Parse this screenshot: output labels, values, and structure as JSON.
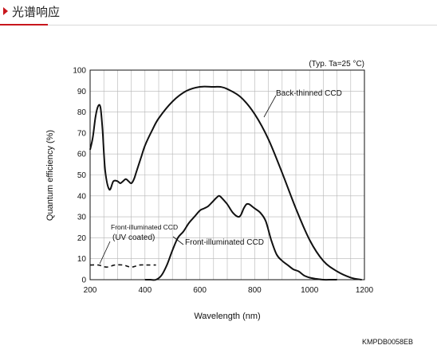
{
  "header": {
    "title": "光谱响应"
  },
  "chart_data": {
    "type": "line",
    "title": "",
    "note": "(Typ. Ta=25 °C)",
    "xlabel": "Wavelength (nm)",
    "ylabel": "Quantum efficiency (%)",
    "xlim": [
      200,
      1200
    ],
    "ylim": [
      0,
      100
    ],
    "xticks": [
      200,
      400,
      600,
      800,
      1000,
      1200
    ],
    "yticks": [
      0,
      10,
      20,
      30,
      40,
      50,
      60,
      70,
      80,
      90,
      100
    ],
    "grid": true,
    "footer_code": "KMPDB0058EB",
    "series": [
      {
        "name": "Back-thinned CCD",
        "style": "solid",
        "x": [
          200,
          210,
          220,
          230,
          238,
          245,
          255,
          270,
          285,
          300,
          310,
          320,
          330,
          340,
          350,
          360,
          370,
          385,
          400,
          425,
          450,
          500,
          550,
          600,
          650,
          675,
          700,
          750,
          800,
          850,
          900,
          950,
          1000,
          1050,
          1100,
          1150,
          1190
        ],
        "y": [
          62,
          68,
          78,
          83,
          82,
          72,
          52,
          43,
          47,
          47,
          46,
          47,
          48,
          47,
          46,
          48,
          52,
          58,
          64,
          71,
          77,
          85,
          90,
          92,
          92,
          92,
          91,
          87,
          79,
          67,
          51,
          34,
          19,
          9,
          4,
          1,
          0
        ]
      },
      {
        "name": "Front-illuminated CCD",
        "style": "solid",
        "x": [
          400,
          420,
          440,
          460,
          480,
          500,
          520,
          540,
          560,
          580,
          600,
          615,
          630,
          645,
          660,
          670,
          680,
          700,
          720,
          740,
          750,
          760,
          770,
          780,
          790,
          800,
          820,
          840,
          860,
          880,
          900,
          920,
          940,
          960,
          980,
          1000,
          1020,
          1050,
          1080,
          1100
        ],
        "y": [
          0,
          0,
          0,
          2,
          7,
          14,
          20,
          23,
          27,
          30,
          33,
          34,
          35,
          37,
          39,
          40,
          39,
          36,
          32,
          30,
          31,
          34,
          36,
          36,
          35,
          34,
          32,
          28,
          19,
          12,
          9,
          7,
          5,
          4,
          2,
          1,
          0.5,
          0,
          0,
          0
        ]
      },
      {
        "name": "Front-illuminated CCD (UV coated)",
        "style": "dashed",
        "x": [
          200,
          230,
          260,
          290,
          320,
          350,
          380,
          410,
          440
        ],
        "y": [
          7,
          7,
          6,
          7,
          7,
          6,
          7,
          7,
          7
        ]
      }
    ],
    "annotations": [
      {
        "text": "Back-thinned CCD",
        "series": 0
      },
      {
        "text": "Front-illuminated CCD",
        "series": 1
      },
      {
        "text": "Front-illuminated CCD",
        "series": 2,
        "line": 1
      },
      {
        "text": "(UV coated)",
        "series": 2,
        "line": 2
      }
    ]
  }
}
